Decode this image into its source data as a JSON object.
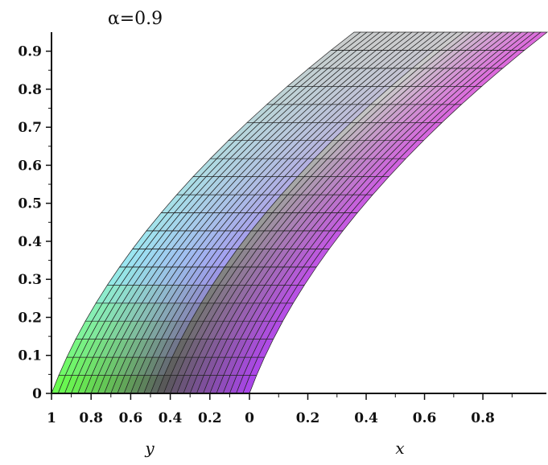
{
  "chart_data": {
    "type": "surface",
    "title": "α=0.9",
    "parameter": {
      "name": "α",
      "value": 0.9
    },
    "xlabel": "x",
    "ylabel": "y",
    "zlabel": "",
    "x_range": [
      0,
      1
    ],
    "y_range": [
      0,
      1
    ],
    "z_range": [
      0,
      0.95
    ],
    "z_ticks": [
      "0",
      "0.1",
      "0.2",
      "0.3",
      "0.4",
      "0.5",
      "0.6",
      "0.7",
      "0.8",
      "0.9"
    ],
    "y_ticks": [
      "1",
      "0.8",
      "0.6",
      "0.4",
      "0.2",
      "0"
    ],
    "x_ticks": [
      "0",
      "0.2",
      "0.4",
      "0.6",
      "0.8"
    ],
    "grid_lines": {
      "vertical": 30,
      "horizontal": 20
    },
    "colors": {
      "bottom_left": "#66ff44",
      "mid_left": "#99eaf2",
      "top_left": "#cccccc",
      "bottom_right": "#555555",
      "right": "#aa44ee",
      "top_right": "#dd66dd",
      "mesh": "#222222"
    }
  }
}
